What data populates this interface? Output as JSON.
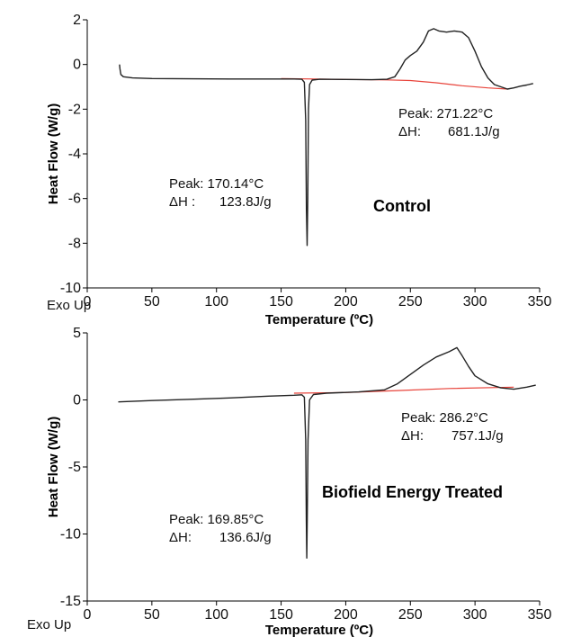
{
  "chart_data": [
    {
      "type": "line",
      "title": "Control",
      "xlabel": "Temperature (ºC)",
      "ylabel": "Heat Flow (W/g)",
      "corner_label": "Exo Up",
      "xlim": [
        0,
        350
      ],
      "ylim": [
        -10,
        2
      ],
      "xticks": [
        0,
        50,
        100,
        150,
        200,
        250,
        300,
        350
      ],
      "yticks": [
        2,
        0,
        -2,
        -4,
        -6,
        -8,
        -10
      ],
      "colors": {
        "curve": "#222222",
        "baseline": "#e8433a"
      },
      "series": [
        {
          "x": [
            25,
            25.3,
            26,
            28,
            35,
            50,
            80,
            110,
            140,
            160,
            166,
            168,
            169,
            169.6,
            170.1,
            170.6,
            171.2,
            172,
            174,
            180,
            200,
            220,
            232,
            238,
            242,
            246,
            250,
            255,
            260,
            264,
            268,
            272,
            278,
            284,
            290,
            295,
            300,
            305,
            310,
            315,
            320,
            325,
            330,
            335,
            340,
            345
          ],
          "y": [
            0,
            -0.2,
            -0.45,
            -0.55,
            -0.6,
            -0.63,
            -0.64,
            -0.65,
            -0.65,
            -0.65,
            -0.66,
            -0.8,
            -2.5,
            -6.5,
            -8.1,
            -6.0,
            -2.0,
            -0.9,
            -0.7,
            -0.66,
            -0.67,
            -0.68,
            -0.66,
            -0.55,
            -0.2,
            0.2,
            0.4,
            0.6,
            1.0,
            1.5,
            1.6,
            1.5,
            1.45,
            1.5,
            1.45,
            1.2,
            0.6,
            -0.1,
            -0.6,
            -0.9,
            -1.0,
            -1.1,
            -1.05,
            -0.97,
            -0.92,
            -0.85
          ]
        }
      ],
      "baseline": {
        "x": [
          150,
          200,
          232,
          250,
          270,
          290,
          310,
          325
        ],
        "y": [
          -0.63,
          -0.67,
          -0.69,
          -0.72,
          -0.82,
          -0.95,
          -1.05,
          -1.1
        ]
      },
      "annotations": [
        {
          "peak": "Peak: 170.14°C",
          "dh_label": "ΔH :",
          "dh_value": "123.8J/g"
        },
        {
          "peak": "Peak: 271.22°C",
          "dh_label": "ΔH:",
          "dh_value": "681.1J/g"
        }
      ]
    },
    {
      "type": "line",
      "title": "Biofield Energy Treated",
      "xlabel": "Temperature (ºC)",
      "ylabel": "Heat Flow (W/g)",
      "corner_label": "Exo Up",
      "xlim": [
        0,
        350
      ],
      "ylim": [
        -15,
        5
      ],
      "xticks": [
        0,
        50,
        100,
        150,
        200,
        250,
        300,
        350
      ],
      "yticks": [
        5,
        0,
        -5,
        -10,
        -15
      ],
      "colors": {
        "curve": "#222222",
        "baseline": "#e8433a"
      },
      "series": [
        {
          "x": [
            24,
            50,
            80,
            110,
            140,
            160,
            166,
            168,
            169,
            169.5,
            169.85,
            170.2,
            170.8,
            172,
            175,
            185,
            210,
            230,
            240,
            250,
            260,
            270,
            280,
            286,
            290,
            295,
            300,
            310,
            320,
            330,
            340,
            347
          ],
          "y": [
            -0.15,
            -0.05,
            0.05,
            0.15,
            0.28,
            0.35,
            0.38,
            0.2,
            -3.0,
            -9.0,
            -11.8,
            -9.0,
            -3.0,
            0.0,
            0.4,
            0.5,
            0.6,
            0.75,
            1.2,
            1.9,
            2.6,
            3.2,
            3.6,
            3.9,
            3.3,
            2.5,
            1.8,
            1.2,
            0.9,
            0.8,
            0.95,
            1.1
          ]
        }
      ],
      "baseline": {
        "x": [
          160,
          200,
          240,
          280,
          330
        ],
        "y": [
          0.5,
          0.55,
          0.7,
          0.85,
          0.95
        ]
      },
      "annotations": [
        {
          "peak": "Peak: 169.85°C",
          "dh_label": "ΔH:",
          "dh_value": "136.6J/g"
        },
        {
          "peak": "Peak: 286.2°C",
          "dh_label": "ΔH:",
          "dh_value": "757.1J/g"
        }
      ]
    }
  ]
}
